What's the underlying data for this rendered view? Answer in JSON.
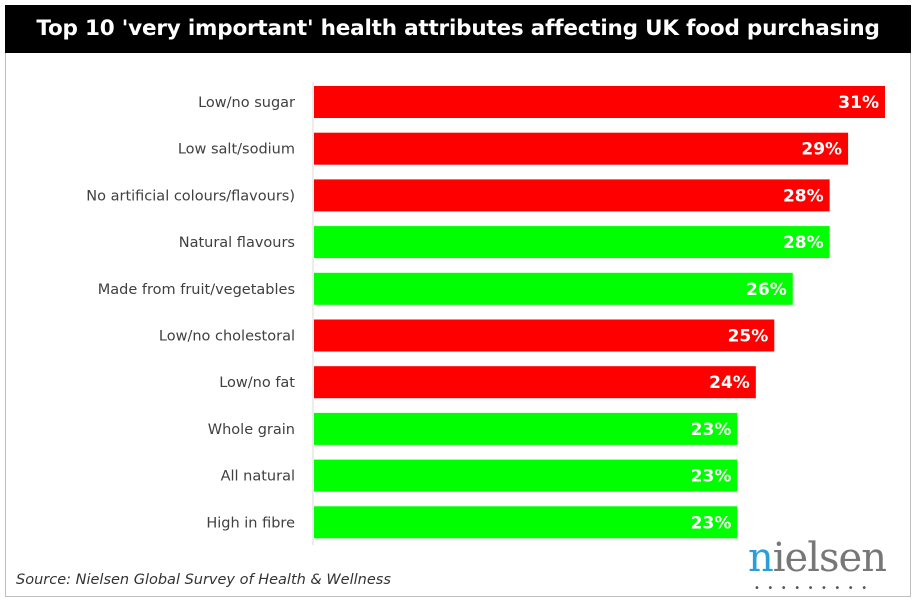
{
  "chart_data": {
    "type": "bar",
    "orientation": "horizontal",
    "title": "Top 10 'very important' health attributes affecting UK food purchasing",
    "categories": [
      "Low/no sugar",
      "Low salt/sodium",
      "No artificial colours/flavours)",
      "Natural flavours",
      "Made from fruit/vegetables",
      "Low/no cholestoral",
      "Low/no fat",
      "Whole grain",
      "All natural",
      "High in fibre"
    ],
    "values": [
      31,
      29,
      28,
      28,
      26,
      25,
      24,
      23,
      23,
      23
    ],
    "value_labels": [
      "31%",
      "29%",
      "28%",
      "28%",
      "26%",
      "25%",
      "24%",
      "23%",
      "23%",
      "23%"
    ],
    "bar_colors": [
      "#ff0000",
      "#ff0000",
      "#ff0000",
      "#00ff00",
      "#00ff00",
      "#ff0000",
      "#ff0000",
      "#00ff00",
      "#00ff00",
      "#00ff00"
    ],
    "xlim": [
      0,
      31
    ],
    "grid": false,
    "unit": "%"
  },
  "source": "Source: Nielsen Global Survey of Health & Wellness",
  "logo": {
    "text": "nielsen",
    "colors": [
      "#2a9fd6",
      "#777777"
    ]
  }
}
